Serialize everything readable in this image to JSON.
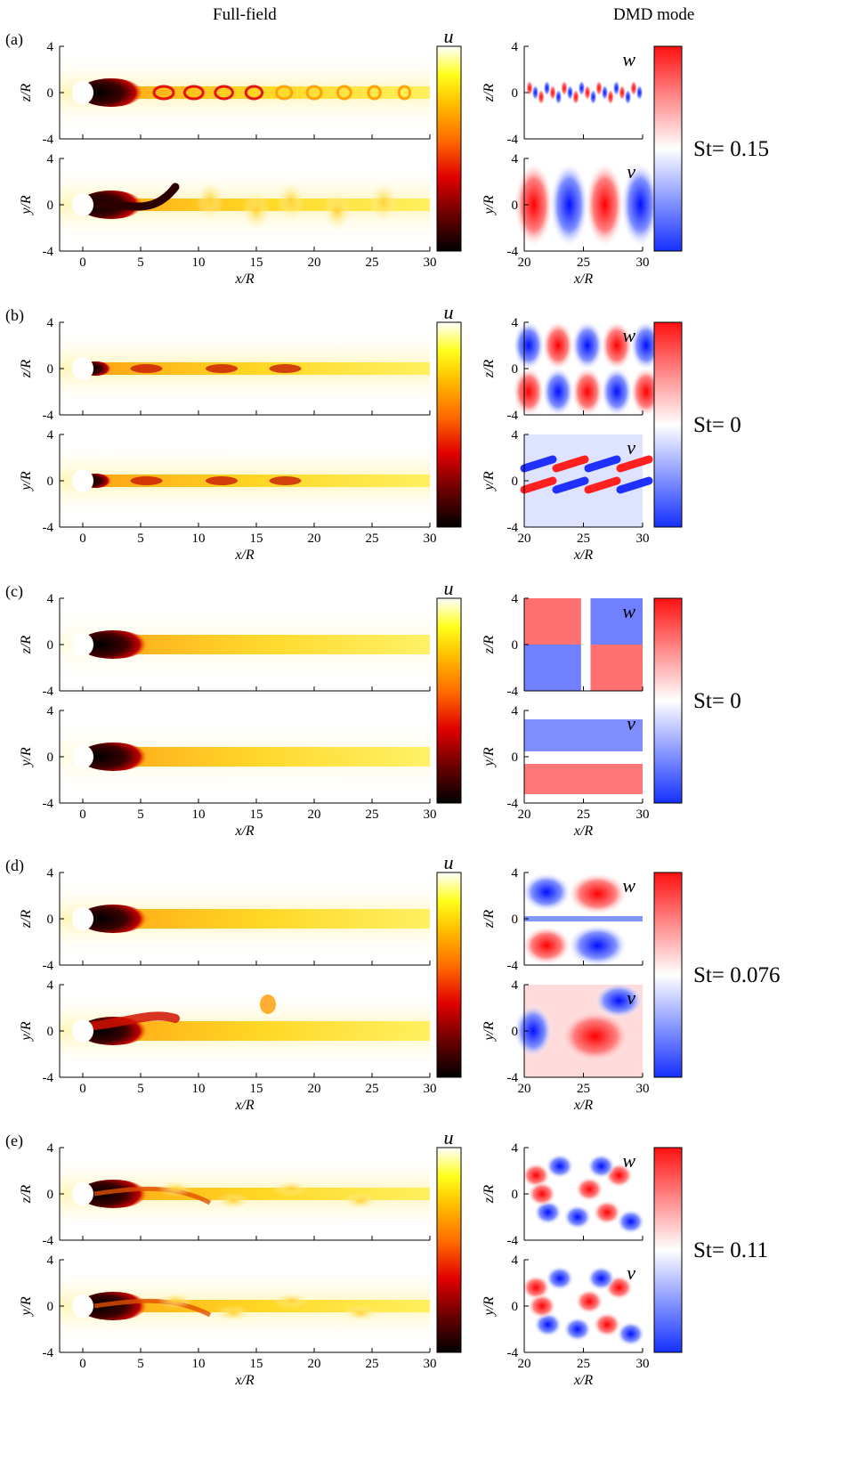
{
  "headers": {
    "left": "Full-field",
    "right": "DMD mode"
  },
  "colors": {
    "hot": [
      "#000000",
      "#6b0000",
      "#e00000",
      "#ff6a00",
      "#ffbf00",
      "#ffff1a",
      "#ffffc0",
      "#ffffff"
    ],
    "diverging": [
      "#1530ff",
      "#8898ff",
      "#ffffff",
      "#ff8a8a",
      "#ff1010"
    ]
  },
  "ff_axes": {
    "xticks": [
      "0",
      "5",
      "10",
      "15",
      "20",
      "25",
      "30"
    ],
    "yticks": [
      "4",
      "0",
      "-4"
    ],
    "xlabel": "x/R",
    "ylabel_top": "z/R",
    "ylabel_bottom": "y/R",
    "colorbar_label": "u"
  },
  "dmd_axes": {
    "xticks": [
      "20",
      "25",
      "30"
    ],
    "yticks": [
      "4",
      "0",
      "-4"
    ],
    "xlabel": "x/R",
    "ylabel_top": "z/R",
    "ylabel_bottom": "y/R",
    "label_top": "w",
    "label_bottom": "v"
  },
  "panels": [
    {
      "label": "(a)",
      "st": "St= 0.15"
    },
    {
      "label": "(b)",
      "st": "St= 0"
    },
    {
      "label": "(c)",
      "st": "St= 0"
    },
    {
      "label": "(d)",
      "st": "St= 0.076"
    },
    {
      "label": "(e)",
      "st": "St= 0.11"
    }
  ]
}
